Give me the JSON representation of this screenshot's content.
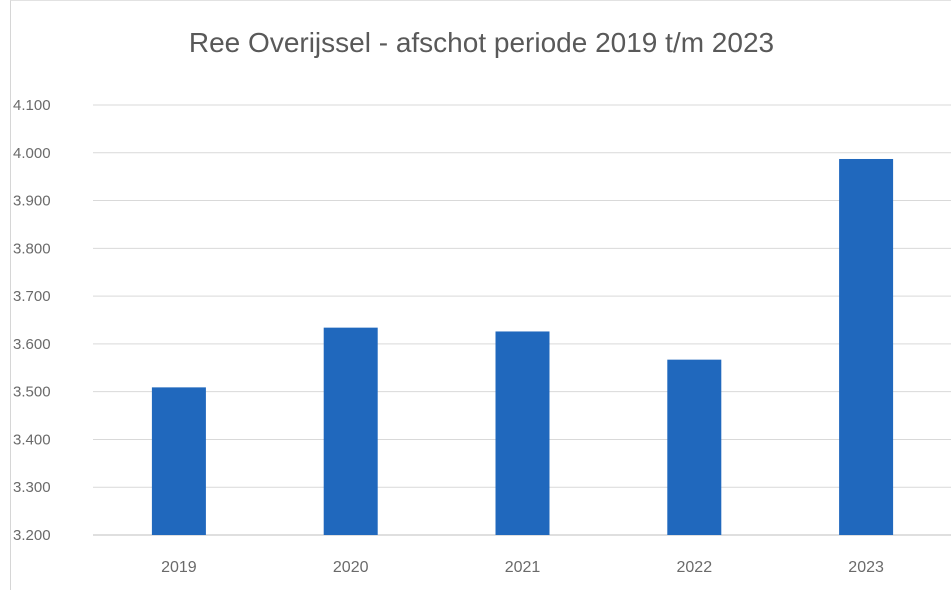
{
  "chart_data": {
    "type": "bar",
    "title": "Ree Overijssel - afschot periode 2019 t/m 2023",
    "categories": [
      "2019",
      "2020",
      "2021",
      "2022",
      "2023"
    ],
    "series": [
      {
        "values": [
          3509,
          3634,
          3626,
          3567,
          3987
        ]
      }
    ],
    "ylim": [
      3200,
      4100
    ],
    "ytick_labels": [
      "4.100",
      "4.000",
      "3.900",
      "3.800",
      "3.700",
      "3.600",
      "3.500",
      "3.400",
      "3.300",
      "3.200"
    ],
    "xlabel": "",
    "ylabel": "",
    "grid": true,
    "legend": "none",
    "bar_color": "#2068bd",
    "grid_color": "#d9d9d9"
  }
}
